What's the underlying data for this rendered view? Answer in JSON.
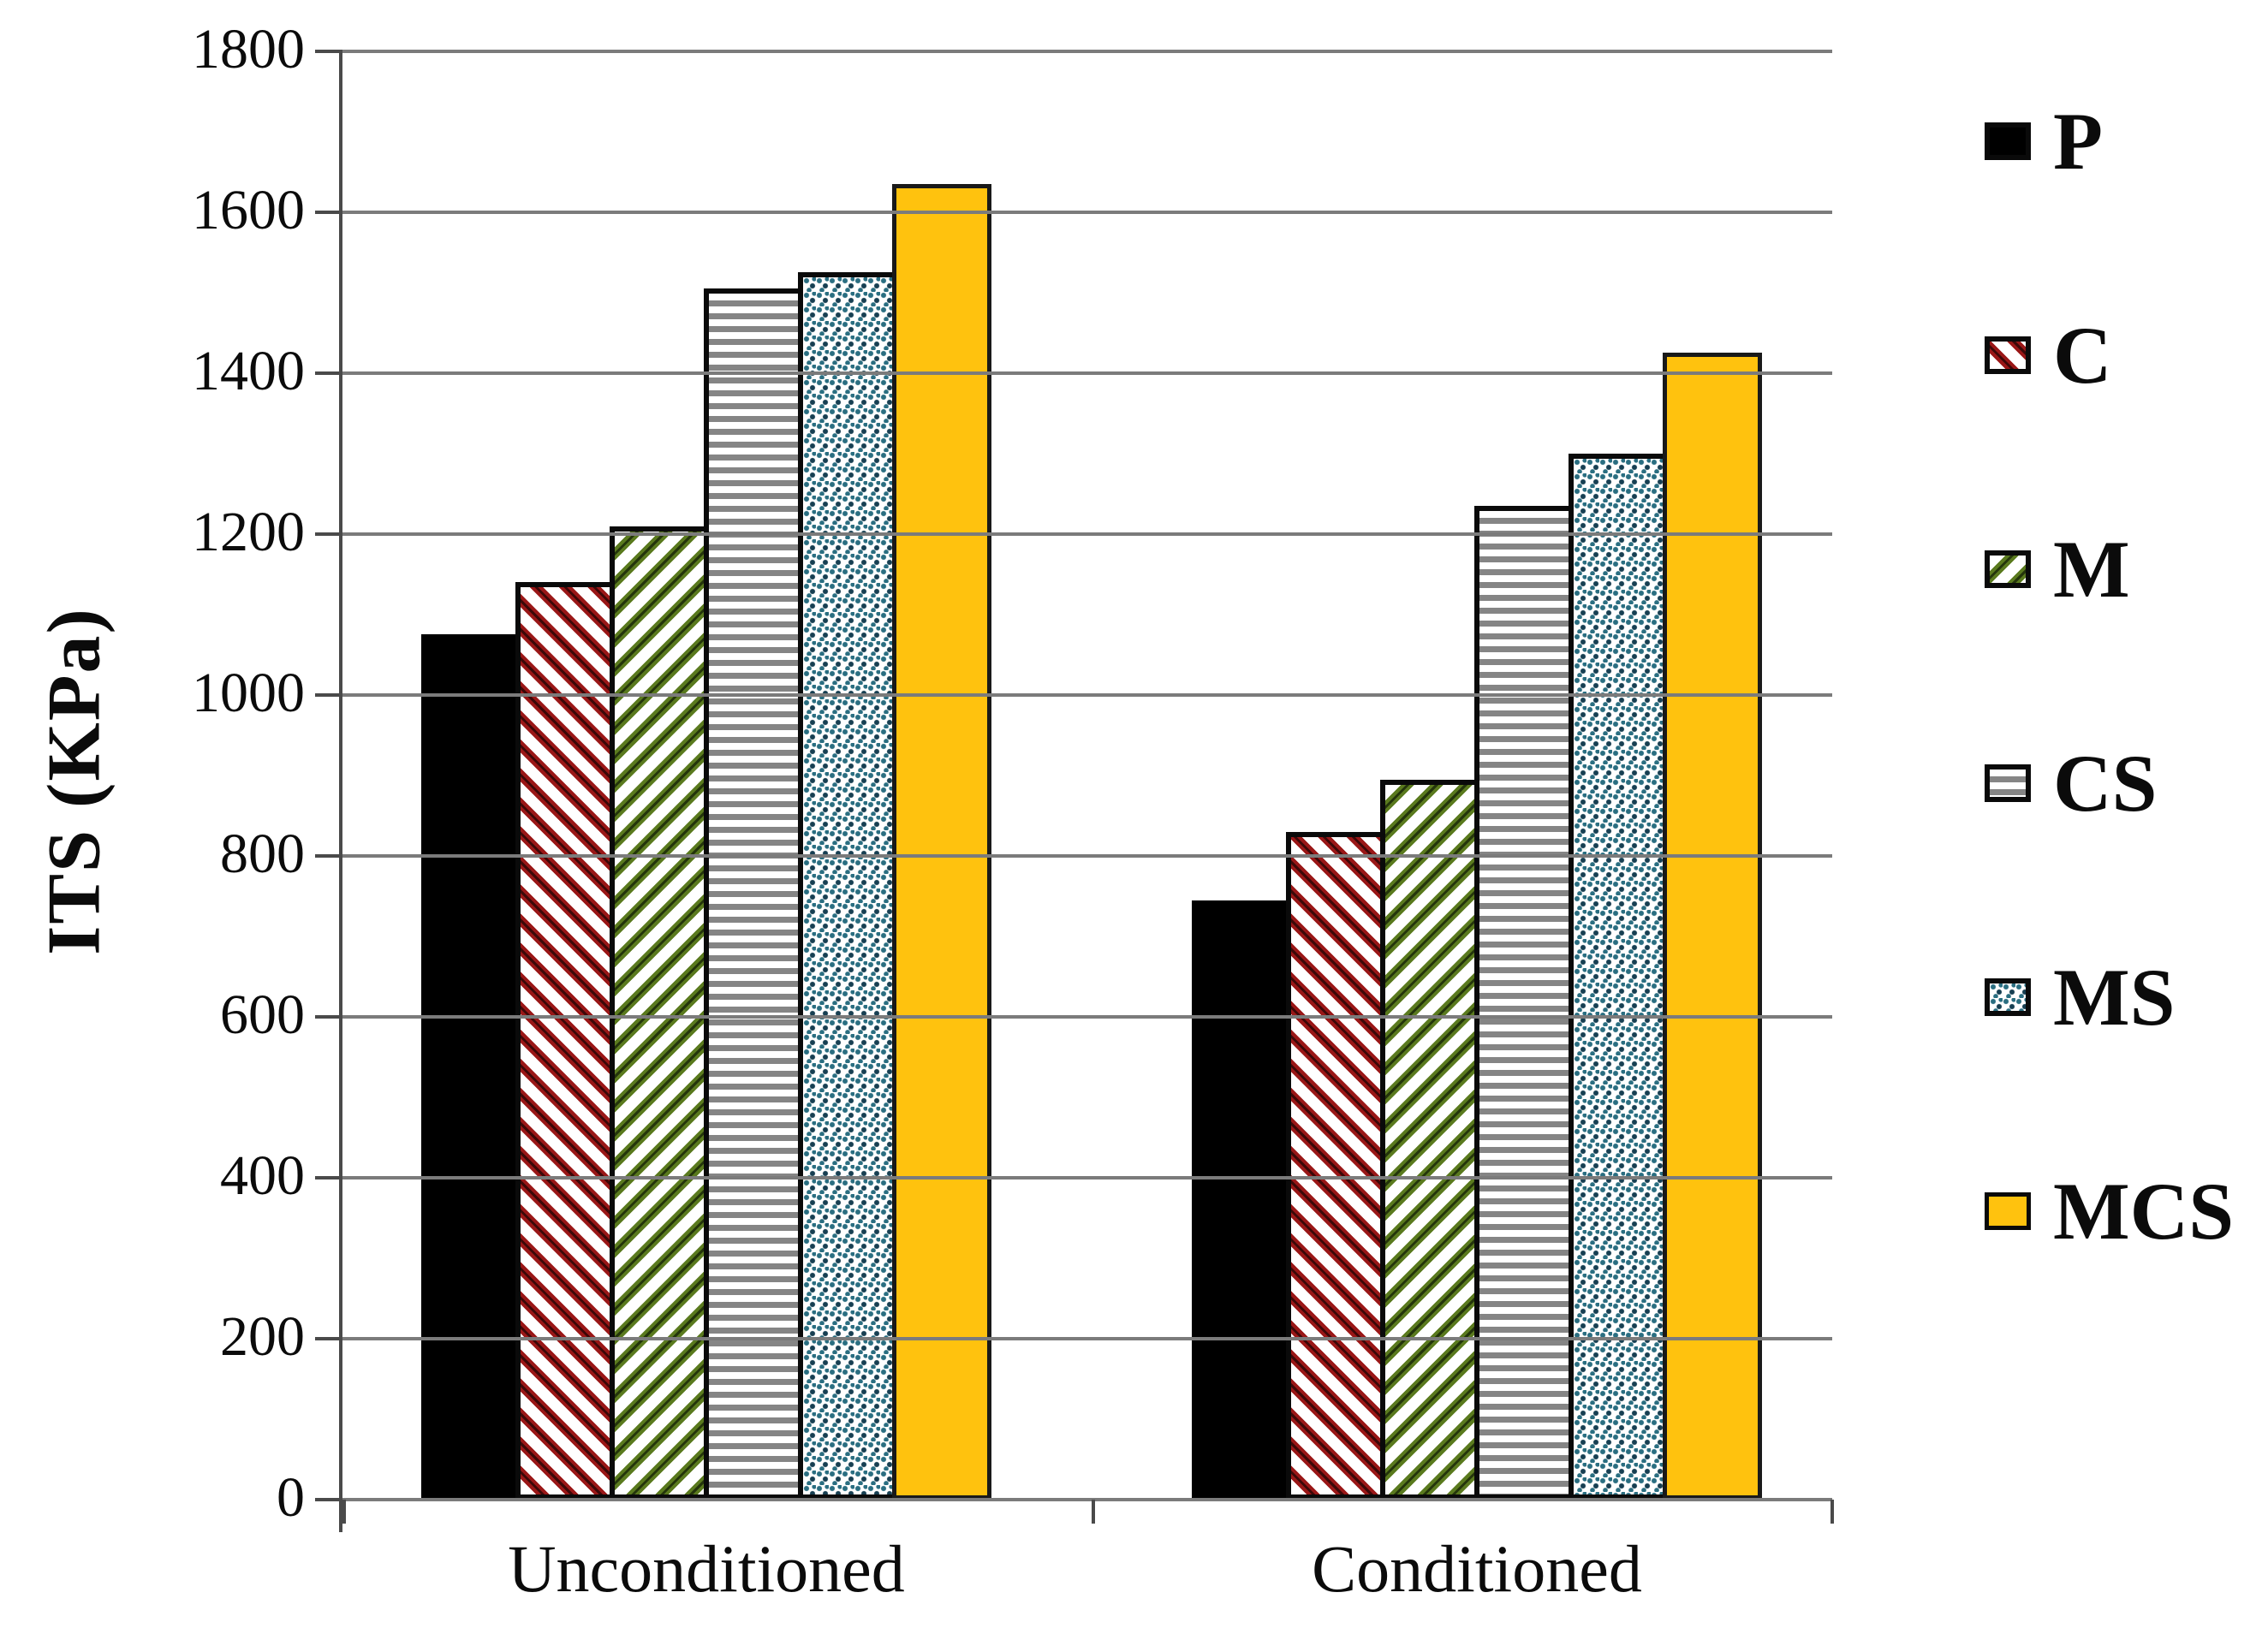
{
  "chart_data": {
    "type": "bar",
    "title": "",
    "ylabel": "ITS (KPa)",
    "xlabel": "",
    "ylim": [
      0,
      1800
    ],
    "ytick_step": 200,
    "yticks": [
      1800,
      1600,
      1400,
      1200,
      1000,
      800,
      600,
      400,
      200,
      0
    ],
    "grid": "horizontal",
    "legend_position": "right",
    "categories": [
      "Unconditioned",
      "Conditioned"
    ],
    "series": [
      {
        "name": "P",
        "pattern": "solid-black",
        "values": [
          1075,
          745
        ]
      },
      {
        "name": "C",
        "pattern": "diagonal-red",
        "values": [
          1140,
          830
        ]
      },
      {
        "name": "M",
        "pattern": "diagonal-green",
        "values": [
          1210,
          895
        ]
      },
      {
        "name": "CS",
        "pattern": "horizontal-gray",
        "values": [
          1505,
          1235
        ]
      },
      {
        "name": "MS",
        "pattern": "dots-teal",
        "values": [
          1525,
          1300
        ]
      },
      {
        "name": "MCS",
        "pattern": "solid-yellow",
        "values": [
          1635,
          1425
        ]
      }
    ],
    "colors": {
      "hatch_red": "#9a1717",
      "hatch_green": "#5a7a1e",
      "line_gray": "#858585",
      "dot_teal": "#2a6e81",
      "solid_yellow": "#ffc20e",
      "solid_black": "#000000",
      "gridline_gray": "#7b7b7b"
    }
  }
}
